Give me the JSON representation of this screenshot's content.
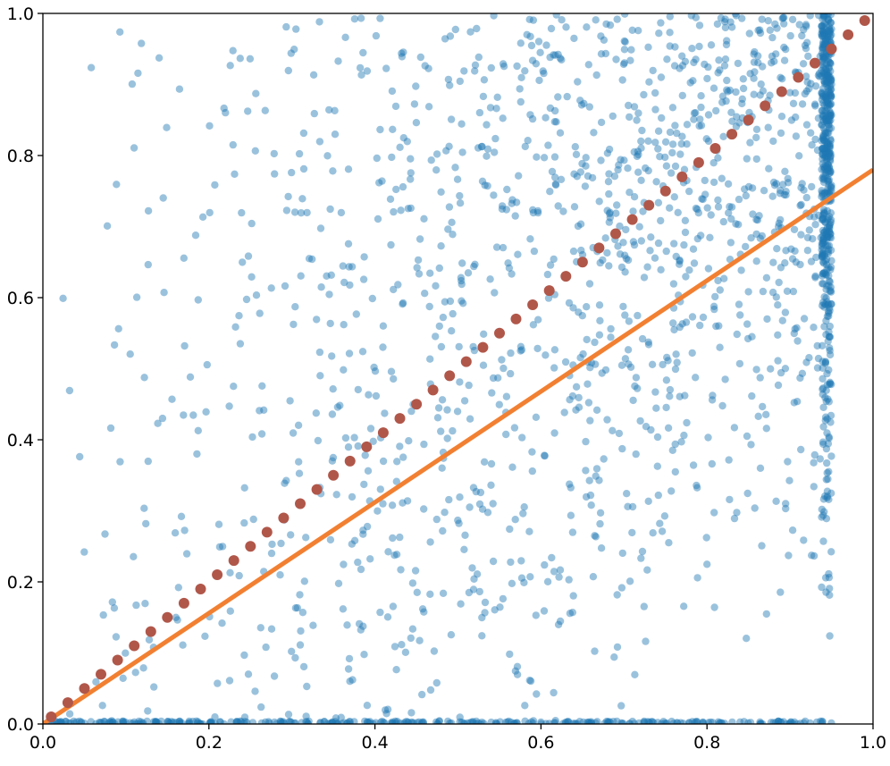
{
  "chart_data": {
    "type": "scatter",
    "title": "",
    "xlabel": "",
    "ylabel": "",
    "xlim": [
      0,
      1
    ],
    "ylim": [
      0,
      1
    ],
    "grid": false,
    "x_ticks": [
      "0.0",
      "0.2",
      "0.4",
      "0.6",
      "0.8",
      "1.0"
    ],
    "y_ticks": [
      "0.0",
      "0.2",
      "0.4",
      "0.6",
      "0.8",
      "1.0"
    ],
    "series": [
      {
        "kind": "scatter-cloud",
        "color": "#1f77b4",
        "point_count": 2200,
        "x_range": [
          0,
          0.95
        ],
        "y_range": [
          0,
          1
        ],
        "description": "dense cloud concentrated near upper-right, vertical band at x=0.95 and horizontal band at y=0"
      },
      {
        "kind": "line",
        "color": "#f28032",
        "x": [
          0,
          1
        ],
        "y": [
          0,
          0.78
        ]
      },
      {
        "kind": "points",
        "color": "#b0574a",
        "x": [
          0.01,
          0.03,
          0.05,
          0.07,
          0.09,
          0.11,
          0.13,
          0.15,
          0.17,
          0.19,
          0.21,
          0.23,
          0.25,
          0.27,
          0.29,
          0.31,
          0.33,
          0.35,
          0.37,
          0.39,
          0.41,
          0.43,
          0.45,
          0.47,
          0.49,
          0.51,
          0.53,
          0.55,
          0.57,
          0.59,
          0.61,
          0.63,
          0.65,
          0.67,
          0.69,
          0.71,
          0.73,
          0.75,
          0.77,
          0.79,
          0.81,
          0.83,
          0.85,
          0.87,
          0.89,
          0.91,
          0.93,
          0.95,
          0.97,
          0.99
        ],
        "y": [
          0.01,
          0.03,
          0.05,
          0.07,
          0.09,
          0.11,
          0.13,
          0.15,
          0.17,
          0.19,
          0.21,
          0.23,
          0.25,
          0.27,
          0.29,
          0.31,
          0.33,
          0.35,
          0.37,
          0.39,
          0.41,
          0.43,
          0.45,
          0.47,
          0.49,
          0.51,
          0.53,
          0.55,
          0.57,
          0.59,
          0.61,
          0.63,
          0.65,
          0.67,
          0.69,
          0.71,
          0.73,
          0.75,
          0.77,
          0.79,
          0.81,
          0.83,
          0.85,
          0.87,
          0.89,
          0.91,
          0.93,
          0.95,
          0.97,
          0.99
        ]
      }
    ]
  }
}
